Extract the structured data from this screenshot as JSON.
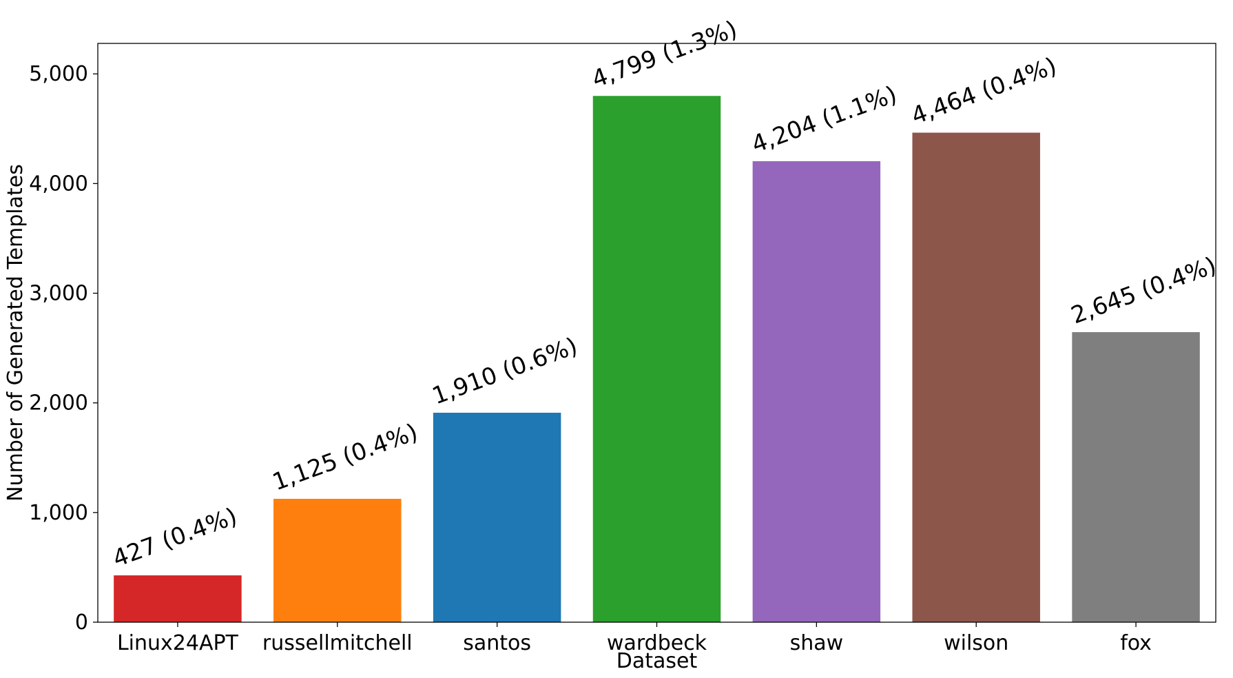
{
  "chart_data": {
    "type": "bar",
    "title": "",
    "xlabel": "Dataset",
    "ylabel": "Number of Generated Templates",
    "categories": [
      "Linux24APT",
      "russellmitchell",
      "santos",
      "wardbeck",
      "shaw",
      "wilson",
      "fox"
    ],
    "values": [
      427,
      1125,
      1910,
      4799,
      4204,
      4464,
      2645
    ],
    "percent_labels": [
      "0.4%",
      "0.4%",
      "0.6%",
      "1.3%",
      "1.1%",
      "0.4%",
      "0.4%"
    ],
    "data_labels": [
      "427 (0.4%)",
      "1,125 (0.4%)",
      "1,910 (0.6%)",
      "4,799 (1.3%)",
      "4,204 (1.1%)",
      "4,464 (0.4%)",
      "2,645 (0.4%)"
    ],
    "colors": [
      "#d62728",
      "#ff7f0e",
      "#1f77b4",
      "#2ca02c",
      "#9467bd",
      "#8c564b",
      "#7f7f7f"
    ],
    "ylim": [
      0,
      5278
    ],
    "yticks": [
      0,
      1000,
      2000,
      3000,
      4000,
      5000
    ],
    "ytick_labels": [
      "0",
      "1,000",
      "2,000",
      "3,000",
      "4,000",
      "5,000"
    ],
    "grid": false,
    "legend": "none"
  }
}
